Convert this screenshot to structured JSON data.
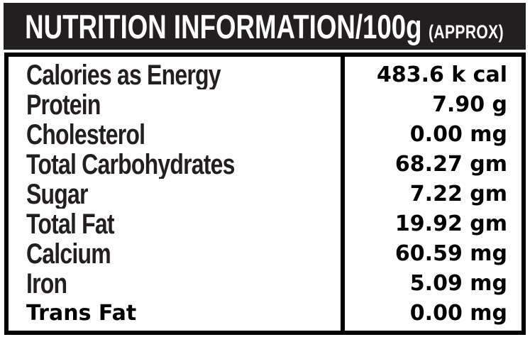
{
  "header": {
    "title": "NUTRITION INFORMATION/100g",
    "approx": "(APPROX)"
  },
  "table": {
    "rows": [
      {
        "label": "Calories as Energy",
        "value": "483.6 k cal"
      },
      {
        "label": "Protein",
        "value": "7.90 g"
      },
      {
        "label": "Cholesterol",
        "value": "0.00 mg"
      },
      {
        "label": "Total Carbohydrates",
        "value": "68.27 gm"
      },
      {
        "label": "Sugar",
        "value": "7.22 gm"
      },
      {
        "label": "Total Fat",
        "value": "19.92 gm"
      },
      {
        "label": "Calcium",
        "value": "60.59 mg"
      },
      {
        "label": "Iron",
        "value": "5.09 mg"
      },
      {
        "label": "Trans Fat",
        "value": "0.00 mg"
      }
    ]
  },
  "colors": {
    "header_background": "#231f20",
    "header_text": "#ffffff",
    "label_ink": "#231f20",
    "value_ink": "#000000",
    "border": "#000000",
    "background": "#ffffff"
  }
}
